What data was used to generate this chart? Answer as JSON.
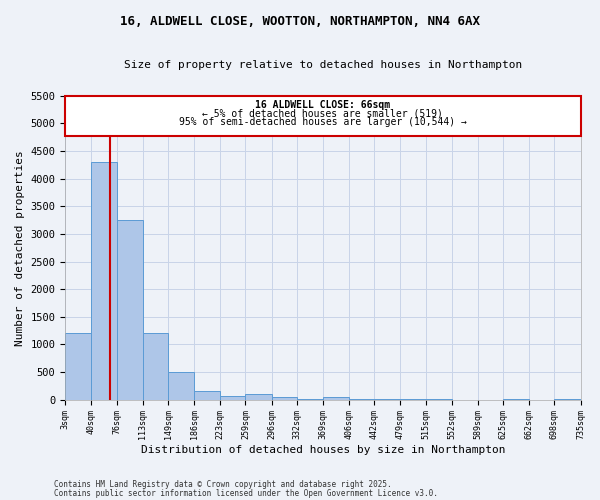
{
  "title1": "16, ALDWELL CLOSE, WOOTTON, NORTHAMPTON, NN4 6AX",
  "title2": "Size of property relative to detached houses in Northampton",
  "xlabel": "Distribution of detached houses by size in Northampton",
  "ylabel": "Number of detached properties",
  "bin_edges": [
    3,
    40,
    76,
    113,
    149,
    186,
    223,
    259,
    296,
    332,
    369,
    406,
    442,
    479,
    515,
    552,
    589,
    625,
    662,
    698,
    735
  ],
  "bar_heights": [
    1200,
    4300,
    3250,
    1200,
    500,
    150,
    60,
    100,
    50,
    20,
    50,
    5,
    5,
    5,
    5,
    0,
    0,
    5,
    0,
    5
  ],
  "bar_color": "#aec6e8",
  "bar_edge_color": "#5b9bd5",
  "grid_color": "#c8d4e8",
  "bg_color": "#eef2f8",
  "vline_x": 66,
  "vline_color": "#cc0000",
  "annotation_title": "16 ALDWELL CLOSE: 66sqm",
  "annotation_line1": "← 5% of detached houses are smaller (519)",
  "annotation_line2": "95% of semi-detached houses are larger (10,544) →",
  "annotation_box_color": "#cc0000",
  "annotation_fill": "#ffffff",
  "ylim": [
    0,
    5500
  ],
  "yticks": [
    0,
    500,
    1000,
    1500,
    2000,
    2500,
    3000,
    3500,
    4000,
    4500,
    5000,
    5500
  ],
  "footer1": "Contains HM Land Registry data © Crown copyright and database right 2025.",
  "footer2": "Contains public sector information licensed under the Open Government Licence v3.0.",
  "xtick_labels": [
    "3sqm",
    "40sqm",
    "76sqm",
    "113sqm",
    "149sqm",
    "186sqm",
    "223sqm",
    "259sqm",
    "296sqm",
    "332sqm",
    "369sqm",
    "406sqm",
    "442sqm",
    "479sqm",
    "515sqm",
    "552sqm",
    "589sqm",
    "625sqm",
    "662sqm",
    "698sqm",
    "735sqm"
  ]
}
